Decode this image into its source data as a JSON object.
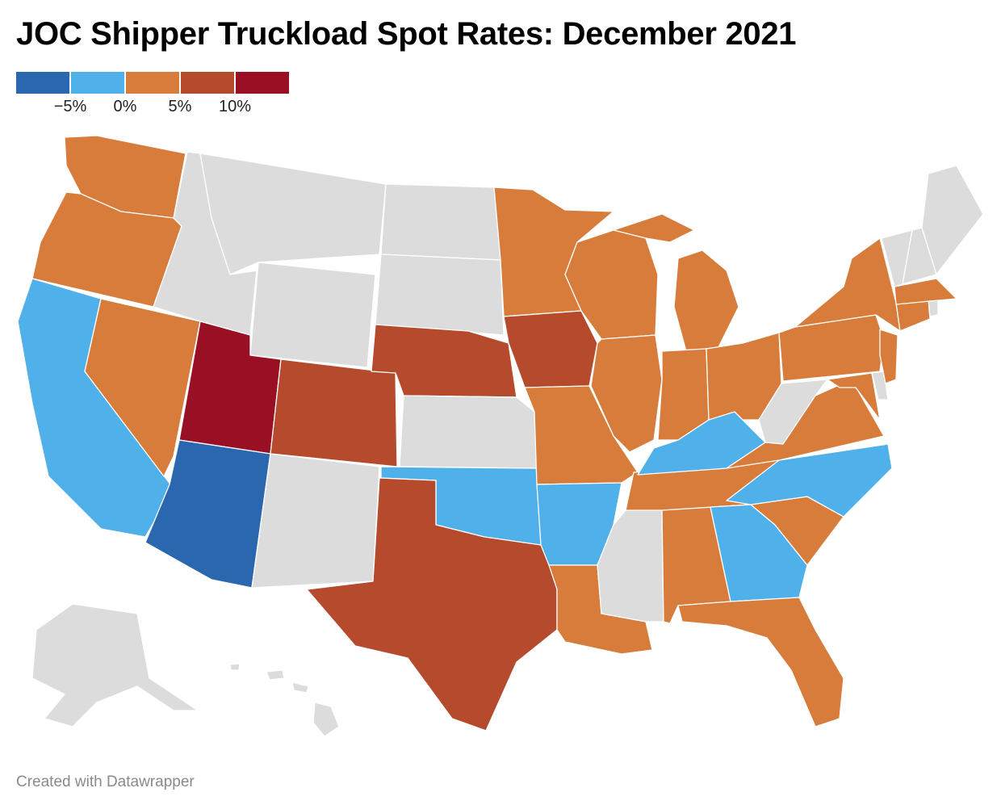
{
  "title": "JOC Shipper Truckload Spot Rates: December 2021",
  "footer": "Created with Datawrapper",
  "legend": {
    "ticks": [
      "−5%",
      "0%",
      "5%",
      "10%"
    ],
    "bins": [
      {
        "color": "#2a67ae"
      },
      {
        "color": "#4fb0ea"
      },
      {
        "color": "#d77c3a"
      },
      {
        "color": "#b64a2d"
      },
      {
        "color": "#990f24"
      }
    ]
  },
  "no_data_color": "#dcdcdc",
  "bin_colors": {
    "AZ": 0,
    "CA": 1,
    "OK": 1,
    "AR": 1,
    "KY": 1,
    "NC": 1,
    "GA": 1,
    "WA": 2,
    "OR": 2,
    "NV": 2,
    "MN": 2,
    "WI": 2,
    "MI": 2,
    "MO": 2,
    "IL": 2,
    "IN": 2,
    "OH": 2,
    "LA": 2,
    "AL": 2,
    "TN": 2,
    "VA": 2,
    "SC": 2,
    "FL": 2,
    "PA": 2,
    "NY": 2,
    "NJ": 2,
    "MD": 2,
    "CT": 2,
    "MA": 2,
    "CO": 3,
    "NE": 3,
    "IA": 3,
    "TX": 3,
    "UT": 4
  },
  "no_data_states": [
    "ID",
    "MT",
    "WY",
    "ND",
    "SD",
    "KS",
    "NM",
    "MS",
    "WV",
    "ME",
    "NH",
    "VT",
    "RI",
    "DE",
    "AK",
    "HI"
  ]
}
